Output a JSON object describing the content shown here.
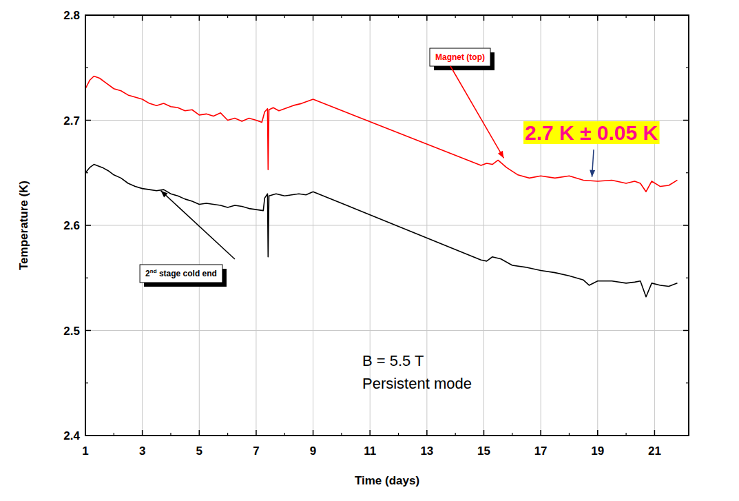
{
  "chart_data": {
    "type": "line",
    "x_label": "Time (days)",
    "y_label": "Temperature (K)",
    "xlim": [
      1,
      22.2
    ],
    "xticks": [
      1,
      3,
      5,
      7,
      9,
      11,
      13,
      15,
      17,
      19,
      21
    ],
    "ylim": [
      2.4,
      2.8
    ],
    "yticks": [
      2.4,
      2.5,
      2.6,
      2.7,
      2.8
    ],
    "grid": true,
    "annotations": [
      "2.7 K ± 0.05 K",
      "B = 5.5 T",
      "Persistent mode"
    ],
    "series": [
      {
        "name": "Magnet (top)",
        "color": "#ff0000",
        "x": [
          1,
          1.15,
          1.3,
          1.5,
          1.7,
          2,
          2.25,
          2.5,
          2.75,
          3,
          3.25,
          3.5,
          3.75,
          4,
          4.25,
          4.5,
          4.75,
          5,
          5.25,
          5.5,
          5.75,
          6,
          6.25,
          6.5,
          6.75,
          7,
          7.2,
          7.3,
          7.4,
          7.42,
          7.45,
          7.6,
          7.8,
          8,
          8.3,
          8.6,
          9,
          14.9,
          15.1,
          15.3,
          15.5,
          15.8,
          16.2,
          16.6,
          17,
          17.5,
          18,
          18.5,
          19,
          19.5,
          20,
          20.3,
          20.5,
          20.7,
          20.9,
          21.2,
          21.5,
          21.8
        ],
        "values": [
          2.73,
          2.738,
          2.742,
          2.74,
          2.736,
          2.73,
          2.728,
          2.724,
          2.722,
          2.72,
          2.716,
          2.714,
          2.716,
          2.713,
          2.712,
          2.709,
          2.71,
          2.705,
          2.706,
          2.704,
          2.707,
          2.7,
          2.702,
          2.699,
          2.702,
          2.7,
          2.698,
          2.708,
          2.711,
          2.653,
          2.71,
          2.712,
          2.709,
          2.711,
          2.714,
          2.716,
          2.72,
          2.657,
          2.659,
          2.658,
          2.662,
          2.655,
          2.648,
          2.645,
          2.647,
          2.645,
          2.647,
          2.643,
          2.642,
          2.643,
          2.64,
          2.642,
          2.64,
          2.632,
          2.642,
          2.637,
          2.638,
          2.643
        ]
      },
      {
        "name": "2nd stage cold end",
        "color": "#000000",
        "x": [
          1,
          1.15,
          1.3,
          1.6,
          1.8,
          2,
          2.25,
          2.5,
          2.75,
          3,
          3.25,
          3.5,
          3.75,
          4,
          4.25,
          4.5,
          4.75,
          5,
          5.25,
          5.5,
          5.75,
          6,
          6.25,
          6.5,
          6.75,
          7,
          7.25,
          7.3,
          7.4,
          7.42,
          7.45,
          7.7,
          8,
          8.25,
          8.5,
          8.75,
          9,
          14.9,
          15.1,
          15.3,
          15.6,
          16,
          16.5,
          17,
          17.5,
          18,
          18.5,
          18.7,
          19,
          19.5,
          20,
          20.3,
          20.5,
          20.7,
          20.9,
          21.2,
          21.5,
          21.8
        ],
        "values": [
          2.65,
          2.655,
          2.658,
          2.655,
          2.652,
          2.648,
          2.645,
          2.64,
          2.637,
          2.635,
          2.634,
          2.633,
          2.634,
          2.63,
          2.628,
          2.625,
          2.623,
          2.62,
          2.621,
          2.62,
          2.619,
          2.617,
          2.619,
          2.618,
          2.616,
          2.615,
          2.614,
          2.626,
          2.63,
          2.57,
          2.628,
          2.63,
          2.628,
          2.629,
          2.63,
          2.629,
          2.632,
          2.567,
          2.566,
          2.57,
          2.568,
          2.562,
          2.56,
          2.557,
          2.555,
          2.552,
          2.548,
          2.543,
          2.547,
          2.547,
          2.545,
          2.546,
          2.547,
          2.532,
          2.545,
          2.543,
          2.542,
          2.545
        ]
      }
    ]
  }
}
